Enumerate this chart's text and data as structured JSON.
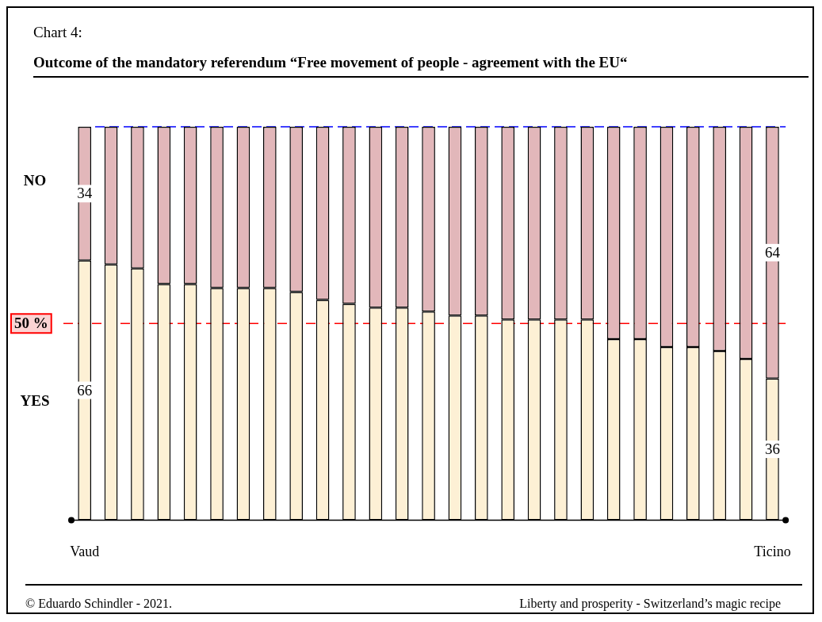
{
  "chart_data": {
    "type": "bar",
    "subtitle": "Chart 4:",
    "title": "Outcome of the mandatory referendum “Free movement of people - agreement with the EU“",
    "categories": [
      "Vaud",
      null,
      null,
      null,
      null,
      null,
      null,
      null,
      null,
      null,
      null,
      null,
      null,
      null,
      null,
      null,
      null,
      null,
      null,
      null,
      null,
      null,
      null,
      null,
      null,
      null,
      "Ticino"
    ],
    "stacked": true,
    "ylim": [
      0,
      100
    ],
    "series": [
      {
        "name": "YES",
        "color": "#fdf0d5",
        "values": [
          66,
          65,
          64,
          60,
          60,
          59,
          59,
          59,
          58,
          56,
          55,
          54,
          54,
          53,
          52,
          52,
          51,
          51,
          51,
          51,
          46,
          46,
          44,
          44,
          43,
          41,
          36
        ],
        "value_labels": [
          "66",
          null,
          null,
          null,
          null,
          null,
          null,
          null,
          null,
          null,
          null,
          null,
          null,
          null,
          null,
          null,
          null,
          null,
          null,
          null,
          null,
          null,
          null,
          null,
          null,
          null,
          "36"
        ]
      },
      {
        "name": "NO",
        "color": "#e2b7ba",
        "values": [
          34,
          35,
          36,
          40,
          40,
          41,
          41,
          41,
          42,
          44,
          45,
          46,
          46,
          47,
          48,
          48,
          49,
          49,
          49,
          49,
          54,
          54,
          56,
          56,
          57,
          59,
          64
        ],
        "value_labels": [
          "34",
          null,
          null,
          null,
          null,
          null,
          null,
          null,
          null,
          null,
          null,
          null,
          null,
          null,
          null,
          null,
          null,
          null,
          null,
          null,
          null,
          null,
          null,
          null,
          null,
          null,
          "64"
        ]
      }
    ],
    "ref_lines": [
      {
        "axis": "y",
        "value": 50,
        "label": "50 %",
        "color": "#ff0000",
        "line_style": "dashed"
      },
      {
        "axis": "y",
        "value": 100,
        "color": "#0000ff",
        "line_style": "dashed"
      }
    ],
    "annotations": [
      "© Eduardo Schindler - 2021.",
      "Liberty and prosperity - Switzerland’s magic recipe"
    ]
  }
}
